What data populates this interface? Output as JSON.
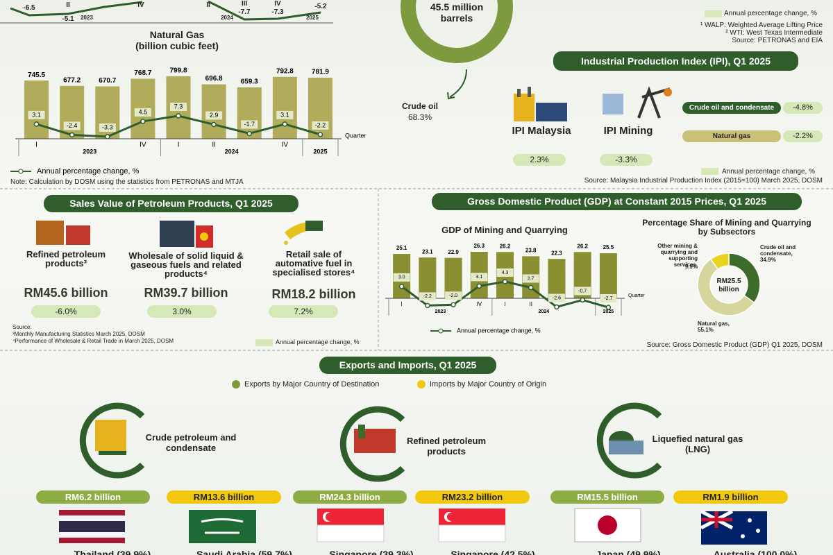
{
  "top_strip": {
    "labels": [
      "-6.5",
      "II",
      "-5.1",
      "2023",
      "IV",
      "II",
      "2024",
      "-7.7",
      "III",
      "IV",
      "-7.3",
      "2025",
      "-5.2"
    ]
  },
  "crude_oil_production": {
    "total": "45.5 million barrels",
    "label": "Crude oil",
    "share": "68.3%"
  },
  "notes_top": {
    "legend": "Annual percentage change, %",
    "walp": "¹ WALP: Weighted Average Lifting Price",
    "wti": "² WTI: West Texas Intermediate",
    "source": "Source: PETRONAS and EIA"
  },
  "chart_data": [
    {
      "type": "bar",
      "title": "Natural Gas",
      "subtitle": "(billion cubic feet)",
      "categories": [
        "I",
        null,
        null,
        "IV",
        "I",
        "II",
        null,
        "IV",
        null
      ],
      "year_labels": [
        "2023",
        "2024",
        "2025"
      ],
      "x_label": "Quarter",
      "series": [
        {
          "color": "#b0ac5c",
          "values": [
            745.5,
            677.2,
            670.7,
            768.7,
            799.8,
            696.8,
            659.3,
            792.8,
            781.9
          ]
        },
        {
          "name": "Annual percentage change, %",
          "color": "#2f5d2b",
          "axis": "y2",
          "values": [
            3.1,
            -2.4,
            -3.3,
            4.5,
            7.3,
            2.9,
            -1.7,
            3.1,
            -2.2
          ]
        }
      ],
      "note": "Note: Calculation by DOSM using the statistics from PETRONAS and MTJA"
    },
    {
      "type": "bar",
      "title": "GDP of Mining and Quarrying",
      "categories": [
        "I",
        null,
        null,
        "IV",
        "I",
        "II",
        null,
        null,
        null
      ],
      "year_labels": [
        "2023",
        "2024",
        "2025"
      ],
      "x_label": "Quarter",
      "series": [
        {
          "color": "#8a8f32",
          "values": [
            25.1,
            23.1,
            22.9,
            26.3,
            26.2,
            23.8,
            22.3,
            26.2,
            25.5
          ]
        },
        {
          "name": "Annual percentage change, %",
          "color": "#2f5d2b",
          "axis": "y2",
          "values": [
            3.0,
            -2.2,
            -2.0,
            3.1,
            4.3,
            2.7,
            -2.6,
            -0.7,
            -2.7
          ],
          "value_labels": [
            "3.0",
            "-2.2",
            "-2.0",
            "3.1",
            "4.3",
            "2.7",
            "-2.6",
            "-0.7",
            "-2.7"
          ]
        }
      ]
    },
    {
      "type": "pie",
      "title": "Percentage Share of Mining and Quarrying by Subsectors",
      "center_label": "RM25.5 billion",
      "categories": [
        "Crude oil and condensate,",
        "Natural gas,",
        "Other mining & quarrying and supporting services,"
      ],
      "values": [
        34.9,
        55.1,
        9.9
      ],
      "value_labels": [
        "34.9%",
        "55.1%",
        "9.9%"
      ],
      "colors": [
        "#3d6b2a",
        "#d5d69c",
        "#e9d31f"
      ]
    }
  ],
  "ipi": {
    "title": "Industrial Production Index (IPI), Q1 2025",
    "malaysia": {
      "label": "IPI Malaysia",
      "value": "2.3%"
    },
    "mining": {
      "label": "IPI Mining",
      "value": "-3.3%"
    },
    "subsectors": [
      {
        "label": "Crude oil and condensate",
        "value": "-4.8%"
      },
      {
        "label": "Natural gas",
        "value": "-2.2%"
      }
    ],
    "legend": "Annual percentage change, %",
    "source": "Source: Malaysia Industrial Production Index (2015=100) March 2025, DOSM"
  },
  "gdp": {
    "title": "Gross Domestic Product (GDP) at Constant 2015 Prices, Q1 2025",
    "source": "Source: Gross Domestic Product (GDP) Q1 2025, DOSM"
  },
  "sales": {
    "title": "Sales Value of Petroleum Products, Q1 2025",
    "items": [
      {
        "label": "Refined petroleum products³",
        "value": "RM45.6 billion",
        "change": "-6.0%"
      },
      {
        "label": "Wholesale of solid liquid & gaseous fuels and related products⁴",
        "value": "RM39.7 billion",
        "change": "3.0%"
      },
      {
        "label": "Retail sale of automative fuel in specialised stores⁴",
        "value": "RM18.2 billion",
        "change": "7.2%"
      }
    ],
    "source": [
      "Source:",
      "³Monthly Manufacturing Statistics March 2025, DOSM",
      "⁴Performance of Wholesale & Retail Trade in March 2025, DOSM"
    ],
    "legend": "Annual percentage change, %"
  },
  "trade": {
    "title": "Exports and Imports, Q1 2025",
    "legend_exports": "Exports by Major Country of Destination",
    "legend_imports": "Imports by Major Country of Origin",
    "products": [
      {
        "label": "Crude petroleum and condensate",
        "exports": {
          "value": "RM6.2 billion",
          "country": "Thailand (39.9%)"
        },
        "imports": {
          "value": "RM13.6 billion",
          "country": "Saudi Arabia (59.7%)"
        }
      },
      {
        "label": "Refined petroleum products",
        "exports": {
          "value": "RM24.3 billion",
          "country": "Singapore (39.3%)"
        },
        "imports": {
          "value": "RM23.2 billion",
          "country": "Singapore (42.5%)"
        }
      },
      {
        "label": "Liquefied natural gas (LNG)",
        "exports": {
          "value": "RM15.5 billion",
          "country": "Japan (49.9%)"
        },
        "imports": {
          "value": "RM1.9 billion",
          "country": "Australia (100.0%)"
        }
      }
    ]
  }
}
